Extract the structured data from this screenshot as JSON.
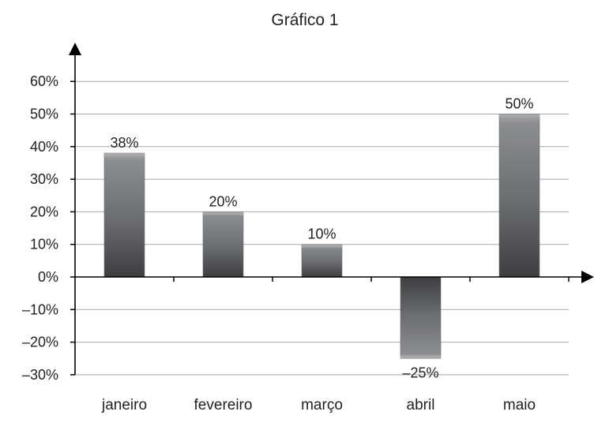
{
  "chart_data": {
    "type": "bar",
    "title": "Gráfico 1",
    "categories": [
      "janeiro",
      "fevereiro",
      "março",
      "abril",
      "maio"
    ],
    "values": [
      38,
      20,
      10,
      -25,
      50
    ],
    "value_labels": [
      "38%",
      "20%",
      "10%",
      "–25%",
      "50%"
    ],
    "ylim": [
      -30,
      60
    ],
    "yticks": [
      60,
      50,
      40,
      30,
      20,
      10,
      0,
      -10,
      -20,
      -30
    ],
    "ytick_labels": [
      "60%",
      "50%",
      "40%",
      "30%",
      "20%",
      "10%",
      "0%",
      "–10%",
      "–20%",
      "–30%"
    ],
    "xlabel": "",
    "ylabel": "",
    "grid": true,
    "legend": "none",
    "colors": {
      "bar_light": "#a7a8aa",
      "bar_mid": "#7f8083",
      "bar_dark": "#3d3d3f",
      "grid": "#a7a9ac",
      "axis": "#000000",
      "text": "#231f20"
    }
  }
}
